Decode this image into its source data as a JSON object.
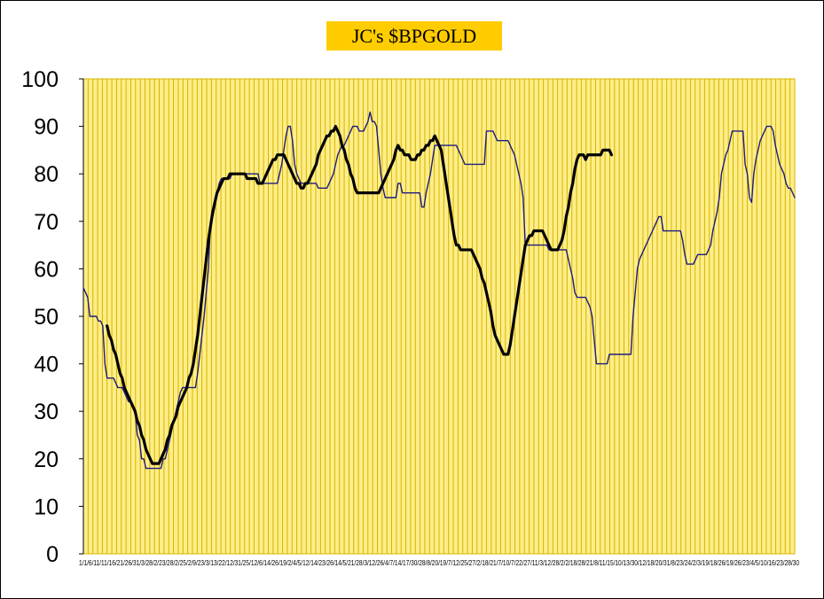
{
  "chart_data": {
    "type": "line",
    "title": "JC's $BPGOLD",
    "ylim": [
      0,
      100
    ],
    "yticks": [
      "0",
      "10",
      "20",
      "30",
      "40",
      "50",
      "60",
      "70",
      "80",
      "90",
      "100"
    ],
    "xtick_labels": "1/1/6/11/11/16/21/26/31/3/28/2/23/28/2/25/2/9/23/3/13/22/12/31/25/12/6/14/26/19/2/4/5/12/14/23/26/14/5/21/28/3/12/26/4/7/14/17/30/28/8/20/19/7/12/25/27/2/18/21/7/10/7/22/27/11/3/12/28/2/2/18/28/21/8/11/15/10/13/30/12/18/20/31/8/23/24/2/3/19/18/26/19/26/23/4/5/10/16/23/28/30",
    "x_count": 150,
    "grid": true,
    "colors": {
      "plot_bg": "#ffee88",
      "gridline": "#d4b400",
      "series_thin": "#1c1c80",
      "series_thick": "#000000",
      "title_bg": "#ffcc00"
    },
    "series": [
      {
        "style": "thin",
        "values": [
          56,
          55,
          54,
          50,
          50,
          50,
          50,
          49,
          49,
          48,
          40,
          37,
          37,
          37,
          37,
          36,
          35,
          35,
          35,
          34,
          33,
          32,
          32,
          31,
          30,
          25,
          24,
          20,
          20,
          18,
          18,
          18,
          18,
          18,
          18,
          18,
          18,
          20,
          20,
          22,
          24,
          26,
          28,
          30,
          32,
          34,
          35,
          35,
          35,
          35,
          35,
          35,
          35,
          38,
          42,
          46,
          50,
          55,
          60,
          70,
          71,
          73,
          76,
          78,
          79,
          79,
          79,
          79,
          79,
          80,
          80,
          80,
          80,
          80,
          80,
          80,
          80,
          80,
          80,
          80,
          80,
          80,
          78,
          78,
          78,
          78,
          78,
          78,
          78,
          78,
          78,
          80,
          82,
          85,
          88,
          90,
          90,
          87,
          82,
          80,
          79,
          78,
          78,
          78,
          78,
          78,
          78,
          78,
          78,
          77,
          77,
          77,
          77,
          77,
          78,
          79,
          80,
          82,
          84,
          85,
          86,
          86,
          87,
          88,
          89,
          90,
          90,
          90,
          89,
          89,
          89,
          90,
          91,
          93,
          91,
          91,
          90,
          85,
          80,
          77,
          75,
          75,
          75,
          75,
          75,
          75,
          78,
          78,
          76,
          76,
          76,
          76,
          76,
          76,
          76,
          76,
          76,
          73,
          73,
          76,
          78,
          80,
          83,
          86,
          86,
          86,
          86,
          86,
          86,
          86,
          86,
          86,
          86,
          86,
          85,
          84,
          83,
          82,
          82,
          82,
          82,
          82,
          82,
          82,
          82,
          82,
          82,
          89,
          89,
          89,
          89,
          88,
          87,
          87,
          87,
          87,
          87,
          87,
          86,
          85,
          84,
          82,
          80,
          78,
          75,
          65,
          65,
          65,
          65,
          65,
          65,
          65,
          65,
          65,
          65,
          65,
          64,
          64,
          64,
          64,
          64,
          64,
          64,
          64,
          64,
          62,
          60,
          58,
          55,
          54,
          54,
          54,
          54,
          54,
          53,
          52,
          50,
          45,
          40,
          40,
          40,
          40,
          40,
          40,
          42,
          42,
          42,
          42,
          42,
          42,
          42,
          42,
          42,
          42,
          42,
          50,
          55,
          60,
          62,
          63,
          64,
          65,
          66,
          67,
          68,
          69,
          70,
          71,
          71,
          68,
          68,
          68,
          68,
          68,
          68,
          68,
          68,
          68,
          66,
          63,
          61,
          61,
          61,
          61,
          62,
          63,
          63,
          63,
          63,
          63,
          64,
          65,
          68,
          70,
          72,
          75,
          80,
          82,
          84,
          85,
          87,
          89,
          89,
          89,
          89,
          89,
          89,
          82,
          80,
          75,
          74,
          80,
          83,
          85,
          87,
          88,
          89,
          90,
          90,
          90,
          89,
          86,
          84,
          82,
          81,
          80,
          78,
          77,
          77,
          76,
          75
        ]
      },
      {
        "style": "thick",
        "start_index": 11,
        "values": [
          48,
          46,
          45,
          43,
          42,
          40,
          38,
          37,
          35,
          34,
          33,
          32,
          31,
          30,
          28,
          27,
          25,
          24,
          22,
          21,
          20,
          19,
          19,
          19,
          19,
          20,
          21,
          22,
          24,
          25,
          27,
          28,
          29,
          31,
          32,
          33,
          34,
          35,
          37,
          38,
          40,
          43,
          46,
          50,
          54,
          58,
          62,
          66,
          69,
          72,
          74,
          76,
          77,
          78,
          79,
          79,
          79,
          80,
          80,
          80,
          80,
          80,
          80,
          80,
          80,
          79,
          79,
          79,
          79,
          79,
          78,
          78,
          78,
          79,
          80,
          81,
          82,
          83,
          83,
          84,
          84,
          84,
          84,
          83,
          82,
          81,
          80,
          79,
          78,
          78,
          77,
          77,
          78,
          78,
          79,
          80,
          81,
          82,
          84,
          85,
          86,
          87,
          88,
          88,
          89,
          89,
          90,
          89,
          88,
          86,
          85,
          83,
          82,
          80,
          79,
          77,
          76,
          76,
          76,
          76,
          76,
          76,
          76,
          76,
          76,
          76,
          76,
          77,
          78,
          79,
          80,
          81,
          82,
          83,
          85,
          86,
          85,
          85,
          84,
          84,
          84,
          83,
          83,
          83,
          84,
          84,
          85,
          85,
          86,
          86,
          87,
          87,
          88,
          87,
          86,
          85,
          82,
          79,
          76,
          73,
          70,
          67,
          65,
          65,
          64,
          64,
          64,
          64,
          64,
          64,
          63,
          62,
          61,
          60,
          58,
          57,
          55,
          53,
          51,
          48,
          46,
          45,
          44,
          43,
          42,
          42,
          42,
          44,
          47,
          50,
          53,
          56,
          59,
          62,
          65,
          66,
          67,
          67,
          68,
          68,
          68,
          68,
          68,
          67,
          66,
          65,
          64,
          64,
          64,
          64,
          65,
          66,
          68,
          71,
          73,
          76,
          78,
          81,
          83,
          84,
          84,
          84,
          83,
          84,
          84,
          84,
          84,
          84,
          84,
          84,
          85,
          85,
          85,
          85,
          84
        ]
      }
    ]
  }
}
